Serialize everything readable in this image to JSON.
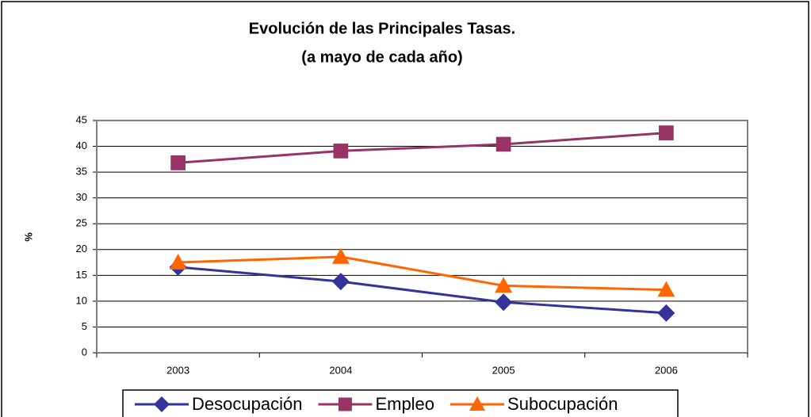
{
  "chart_data": {
    "type": "line",
    "title": "Evolución de las Principales Tasas.",
    "subtitle": "(a mayo de cada  año)",
    "y_label": "%",
    "categories": [
      "2003",
      "2004",
      "2005",
      "2006"
    ],
    "series": [
      {
        "name": "Desocupación",
        "color": "#333399",
        "marker": "diamond",
        "values": [
          16.6,
          13.8,
          9.8,
          7.7
        ]
      },
      {
        "name": "Empleo",
        "color": "#993366",
        "marker": "square",
        "values": [
          36.8,
          39.1,
          40.4,
          42.6
        ]
      },
      {
        "name": "Subocupación",
        "color": "#FF6600",
        "marker": "triangle",
        "values": [
          17.5,
          18.6,
          13.0,
          12.2
        ]
      }
    ],
    "ylim": [
      0,
      45
    ],
    "yticks": [
      0,
      5,
      10,
      15,
      20,
      25,
      30,
      35,
      40,
      45
    ],
    "grid": true,
    "legend": "bottom"
  }
}
